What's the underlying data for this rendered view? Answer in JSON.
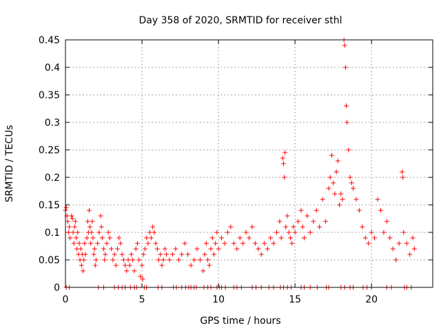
{
  "chart_data": {
    "type": "scatter",
    "title": "Day 358 of 2020, SRMTID for receiver sthl",
    "xlabel": "GPS time / hours",
    "ylabel": "SRMTID / TECUs",
    "xlim": [
      0,
      24
    ],
    "ylim": [
      0,
      0.45
    ],
    "x_ticks": [
      0,
      5,
      10,
      15,
      20
    ],
    "x_tick_labels": [
      "0",
      "5",
      "10",
      "15",
      "20"
    ],
    "y_ticks": [
      0,
      0.05,
      0.1,
      0.15,
      0.2,
      0.25,
      0.3,
      0.35,
      0.4,
      0.45
    ],
    "y_tick_labels": [
      "0",
      "0.05",
      "0.1",
      "0.15",
      "0.2",
      "0.25",
      "0.3",
      "0.35",
      "0.4",
      "0.45"
    ],
    "grid": true,
    "marker": "+",
    "color": "#ff0000",
    "series": [
      {
        "name": "SRMTID",
        "points": [
          [
            0.0,
            0.14
          ],
          [
            0.05,
            0.145
          ],
          [
            0.1,
            0.13
          ],
          [
            0.15,
            0.12
          ],
          [
            0.2,
            0.1
          ],
          [
            0.25,
            0.11
          ],
          [
            0.3,
            0.09
          ],
          [
            0.4,
            0.13
          ],
          [
            0.45,
            0.125
          ],
          [
            0.5,
            0.1
          ],
          [
            0.55,
            0.08
          ],
          [
            0.6,
            0.11
          ],
          [
            0.65,
            0.12
          ],
          [
            0.7,
            0.09
          ],
          [
            0.75,
            0.07
          ],
          [
            0.8,
            0.1
          ],
          [
            0.85,
            0.06
          ],
          [
            0.9,
            0.08
          ],
          [
            0.95,
            0.05
          ],
          [
            1.0,
            0.07
          ],
          [
            1.05,
            0.04
          ],
          [
            1.1,
            0.06
          ],
          [
            1.15,
            0.03
          ],
          [
            1.2,
            0.05
          ],
          [
            1.25,
            0.08
          ],
          [
            1.3,
            0.06
          ],
          [
            1.4,
            0.09
          ],
          [
            1.45,
            0.12
          ],
          [
            1.5,
            0.1
          ],
          [
            1.55,
            0.14
          ],
          [
            1.6,
            0.11
          ],
          [
            1.65,
            0.08
          ],
          [
            1.7,
            0.1
          ],
          [
            1.75,
            0.12
          ],
          [
            1.8,
            0.09
          ],
          [
            1.85,
            0.06
          ],
          [
            1.9,
            0.07
          ],
          [
            1.95,
            0.04
          ],
          [
            2.0,
            0.05
          ],
          [
            2.1,
            0.08
          ],
          [
            2.2,
            0.1
          ],
          [
            2.3,
            0.13
          ],
          [
            2.35,
            0.11
          ],
          [
            2.4,
            0.09
          ],
          [
            2.5,
            0.07
          ],
          [
            2.55,
            0.05
          ],
          [
            2.6,
            0.06
          ],
          [
            2.7,
            0.08
          ],
          [
            2.8,
            0.1
          ],
          [
            2.9,
            0.09
          ],
          [
            3.0,
            0.07
          ],
          [
            3.1,
            0.05
          ],
          [
            3.2,
            0.06
          ],
          [
            3.3,
            0.04
          ],
          [
            3.4,
            0.07
          ],
          [
            3.5,
            0.09
          ],
          [
            3.6,
            0.08
          ],
          [
            3.7,
            0.06
          ],
          [
            3.8,
            0.05
          ],
          [
            3.9,
            0.04
          ],
          [
            4.0,
            0.03
          ],
          [
            4.1,
            0.05
          ],
          [
            4.2,
            0.04
          ],
          [
            4.3,
            0.06
          ],
          [
            4.4,
            0.05
          ],
          [
            4.5,
            0.03
          ],
          [
            4.6,
            0.07
          ],
          [
            4.7,
            0.08
          ],
          [
            4.8,
            0.05
          ],
          [
            4.9,
            0.02
          ],
          [
            5.0,
            0.04
          ],
          [
            5.05,
            0.015
          ],
          [
            5.1,
            0.06
          ],
          [
            5.2,
            0.07
          ],
          [
            5.3,
            0.09
          ],
          [
            5.4,
            0.08
          ],
          [
            5.5,
            0.1
          ],
          [
            5.6,
            0.09
          ],
          [
            5.7,
            0.11
          ],
          [
            5.8,
            0.1
          ],
          [
            5.9,
            0.08
          ],
          [
            6.0,
            0.07
          ],
          [
            6.1,
            0.05
          ],
          [
            6.2,
            0.06
          ],
          [
            6.3,
            0.04
          ],
          [
            6.4,
            0.05
          ],
          [
            6.5,
            0.07
          ],
          [
            6.6,
            0.06
          ],
          [
            6.8,
            0.05
          ],
          [
            7.0,
            0.06
          ],
          [
            7.2,
            0.07
          ],
          [
            7.4,
            0.05
          ],
          [
            7.6,
            0.06
          ],
          [
            7.8,
            0.08
          ],
          [
            8.0,
            0.06
          ],
          [
            8.2,
            0.04
          ],
          [
            8.4,
            0.05
          ],
          [
            8.6,
            0.07
          ],
          [
            8.8,
            0.05
          ],
          [
            9.0,
            0.03
          ],
          [
            9.1,
            0.06
          ],
          [
            9.2,
            0.08
          ],
          [
            9.3,
            0.05
          ],
          [
            9.4,
            0.04
          ],
          [
            9.5,
            0.07
          ],
          [
            9.6,
            0.09
          ],
          [
            9.7,
            0.06
          ],
          [
            9.8,
            0.08
          ],
          [
            9.9,
            0.1
          ],
          [
            10.0,
            0.07
          ],
          [
            10.2,
            0.09
          ],
          [
            10.4,
            0.08
          ],
          [
            10.6,
            0.1
          ],
          [
            10.8,
            0.11
          ],
          [
            11.0,
            0.08
          ],
          [
            11.2,
            0.07
          ],
          [
            11.4,
            0.09
          ],
          [
            11.6,
            0.08
          ],
          [
            11.8,
            0.1
          ],
          [
            12.0,
            0.09
          ],
          [
            12.2,
            0.11
          ],
          [
            12.4,
            0.08
          ],
          [
            12.6,
            0.07
          ],
          [
            12.8,
            0.06
          ],
          [
            13.0,
            0.08
          ],
          [
            13.2,
            0.07
          ],
          [
            13.4,
            0.09
          ],
          [
            13.6,
            0.08
          ],
          [
            13.8,
            0.1
          ],
          [
            14.0,
            0.12
          ],
          [
            14.1,
            0.09
          ],
          [
            14.2,
            0.235
          ],
          [
            14.25,
            0.225
          ],
          [
            14.3,
            0.2
          ],
          [
            14.35,
            0.245
          ],
          [
            14.4,
            0.11
          ],
          [
            14.5,
            0.13
          ],
          [
            14.6,
            0.1
          ],
          [
            14.7,
            0.09
          ],
          [
            14.8,
            0.08
          ],
          [
            14.9,
            0.11
          ],
          [
            15.0,
            0.1
          ],
          [
            15.2,
            0.12
          ],
          [
            15.4,
            0.14
          ],
          [
            15.5,
            0.11
          ],
          [
            15.6,
            0.09
          ],
          [
            15.8,
            0.13
          ],
          [
            16.0,
            0.1
          ],
          [
            16.2,
            0.12
          ],
          [
            16.4,
            0.14
          ],
          [
            16.6,
            0.11
          ],
          [
            16.8,
            0.16
          ],
          [
            17.0,
            0.12
          ],
          [
            17.2,
            0.18
          ],
          [
            17.3,
            0.2
          ],
          [
            17.4,
            0.24
          ],
          [
            17.5,
            0.19
          ],
          [
            17.6,
            0.17
          ],
          [
            17.7,
            0.21
          ],
          [
            17.8,
            0.23
          ],
          [
            17.9,
            0.15
          ],
          [
            18.0,
            0.17
          ],
          [
            18.1,
            0.16
          ],
          [
            18.2,
            0.45
          ],
          [
            18.25,
            0.44
          ],
          [
            18.3,
            0.4
          ],
          [
            18.35,
            0.33
          ],
          [
            18.4,
            0.3
          ],
          [
            18.5,
            0.25
          ],
          [
            18.6,
            0.2
          ],
          [
            18.7,
            0.19
          ],
          [
            18.8,
            0.18
          ],
          [
            19.0,
            0.16
          ],
          [
            19.2,
            0.14
          ],
          [
            19.4,
            0.11
          ],
          [
            19.6,
            0.09
          ],
          [
            19.8,
            0.08
          ],
          [
            20.0,
            0.1
          ],
          [
            20.2,
            0.09
          ],
          [
            20.4,
            0.16
          ],
          [
            20.6,
            0.14
          ],
          [
            20.8,
            0.1
          ],
          [
            21.0,
            0.12
          ],
          [
            21.2,
            0.09
          ],
          [
            21.4,
            0.07
          ],
          [
            21.6,
            0.05
          ],
          [
            21.8,
            0.08
          ],
          [
            22.0,
            0.21
          ],
          [
            22.05,
            0.2
          ],
          [
            22.1,
            0.1
          ],
          [
            22.3,
            0.08
          ],
          [
            22.5,
            0.06
          ],
          [
            22.7,
            0.09
          ],
          [
            22.8,
            0.07
          ]
        ]
      }
    ],
    "zero_points_x": [
      0.05,
      0.25,
      2.15,
      2.5,
      3.2,
      3.45,
      3.7,
      3.9,
      4.25,
      4.5,
      4.65,
      5.15,
      5.3,
      6.05,
      6.3,
      7.05,
      7.25,
      7.6,
      7.85,
      8.05,
      8.2,
      8.4,
      8.55,
      9.05,
      9.3,
      9.5,
      9.9,
      10.05,
      10.2,
      10.45,
      11.0,
      11.2,
      11.5,
      12.2,
      12.45,
      12.8,
      13.3,
      13.6,
      14.05,
      14.25,
      14.5,
      14.75,
      15.4,
      15.6,
      16.0,
      16.45,
      17.05,
      17.2,
      18.0,
      18.25,
      18.6,
      18.8,
      19.45,
      19.7,
      20.0,
      21.0,
      21.3,
      22.15,
      22.3,
      22.6
    ]
  }
}
